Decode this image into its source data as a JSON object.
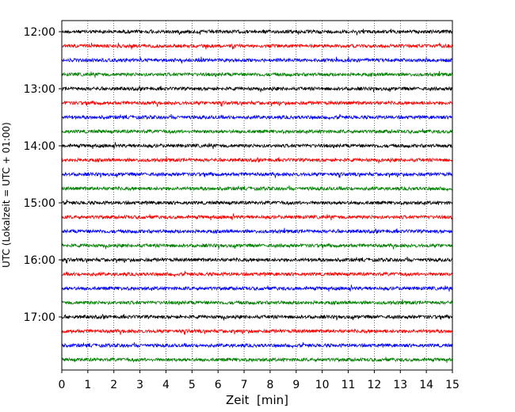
{
  "chart_data": {
    "type": "line",
    "title": "",
    "xlabel": "Zeit  [min]",
    "ylabel": "UTC (Lokalzeit = UTC + 01:00)",
    "xlim": [
      0,
      15
    ],
    "x_ticks": [
      "0",
      "1",
      "2",
      "3",
      "4",
      "5",
      "6",
      "7",
      "8",
      "9",
      "10",
      "11",
      "12",
      "13",
      "14",
      "15"
    ],
    "y_ticks": [
      "12:00",
      "13:00",
      "14:00",
      "15:00",
      "16:00",
      "17:00"
    ],
    "grid_x": true,
    "grid_style": "dotted",
    "legend": "none",
    "trace_colors": [
      "#000000",
      "#ff0000",
      "#0000ff",
      "#008000"
    ],
    "traces": [
      {
        "start": "12:00",
        "color": "#000000"
      },
      {
        "start": "12:15",
        "color": "#ff0000"
      },
      {
        "start": "12:30",
        "color": "#0000ff"
      },
      {
        "start": "12:45",
        "color": "#008000"
      },
      {
        "start": "13:00",
        "color": "#000000"
      },
      {
        "start": "13:15",
        "color": "#ff0000"
      },
      {
        "start": "13:30",
        "color": "#0000ff"
      },
      {
        "start": "13:45",
        "color": "#008000"
      },
      {
        "start": "14:00",
        "color": "#000000"
      },
      {
        "start": "14:15",
        "color": "#ff0000"
      },
      {
        "start": "14:30",
        "color": "#0000ff"
      },
      {
        "start": "14:45",
        "color": "#008000"
      },
      {
        "start": "15:00",
        "color": "#000000"
      },
      {
        "start": "15:15",
        "color": "#ff0000"
      },
      {
        "start": "15:30",
        "color": "#0000ff"
      },
      {
        "start": "15:45",
        "color": "#008000"
      },
      {
        "start": "16:00",
        "color": "#000000"
      },
      {
        "start": "16:15",
        "color": "#ff0000"
      },
      {
        "start": "16:30",
        "color": "#0000ff"
      },
      {
        "start": "16:45",
        "color": "#008000"
      },
      {
        "start": "17:00",
        "color": "#000000"
      },
      {
        "start": "17:15",
        "color": "#ff0000"
      },
      {
        "start": "17:30",
        "color": "#0000ff"
      },
      {
        "start": "17:45",
        "color": "#008000"
      }
    ]
  }
}
